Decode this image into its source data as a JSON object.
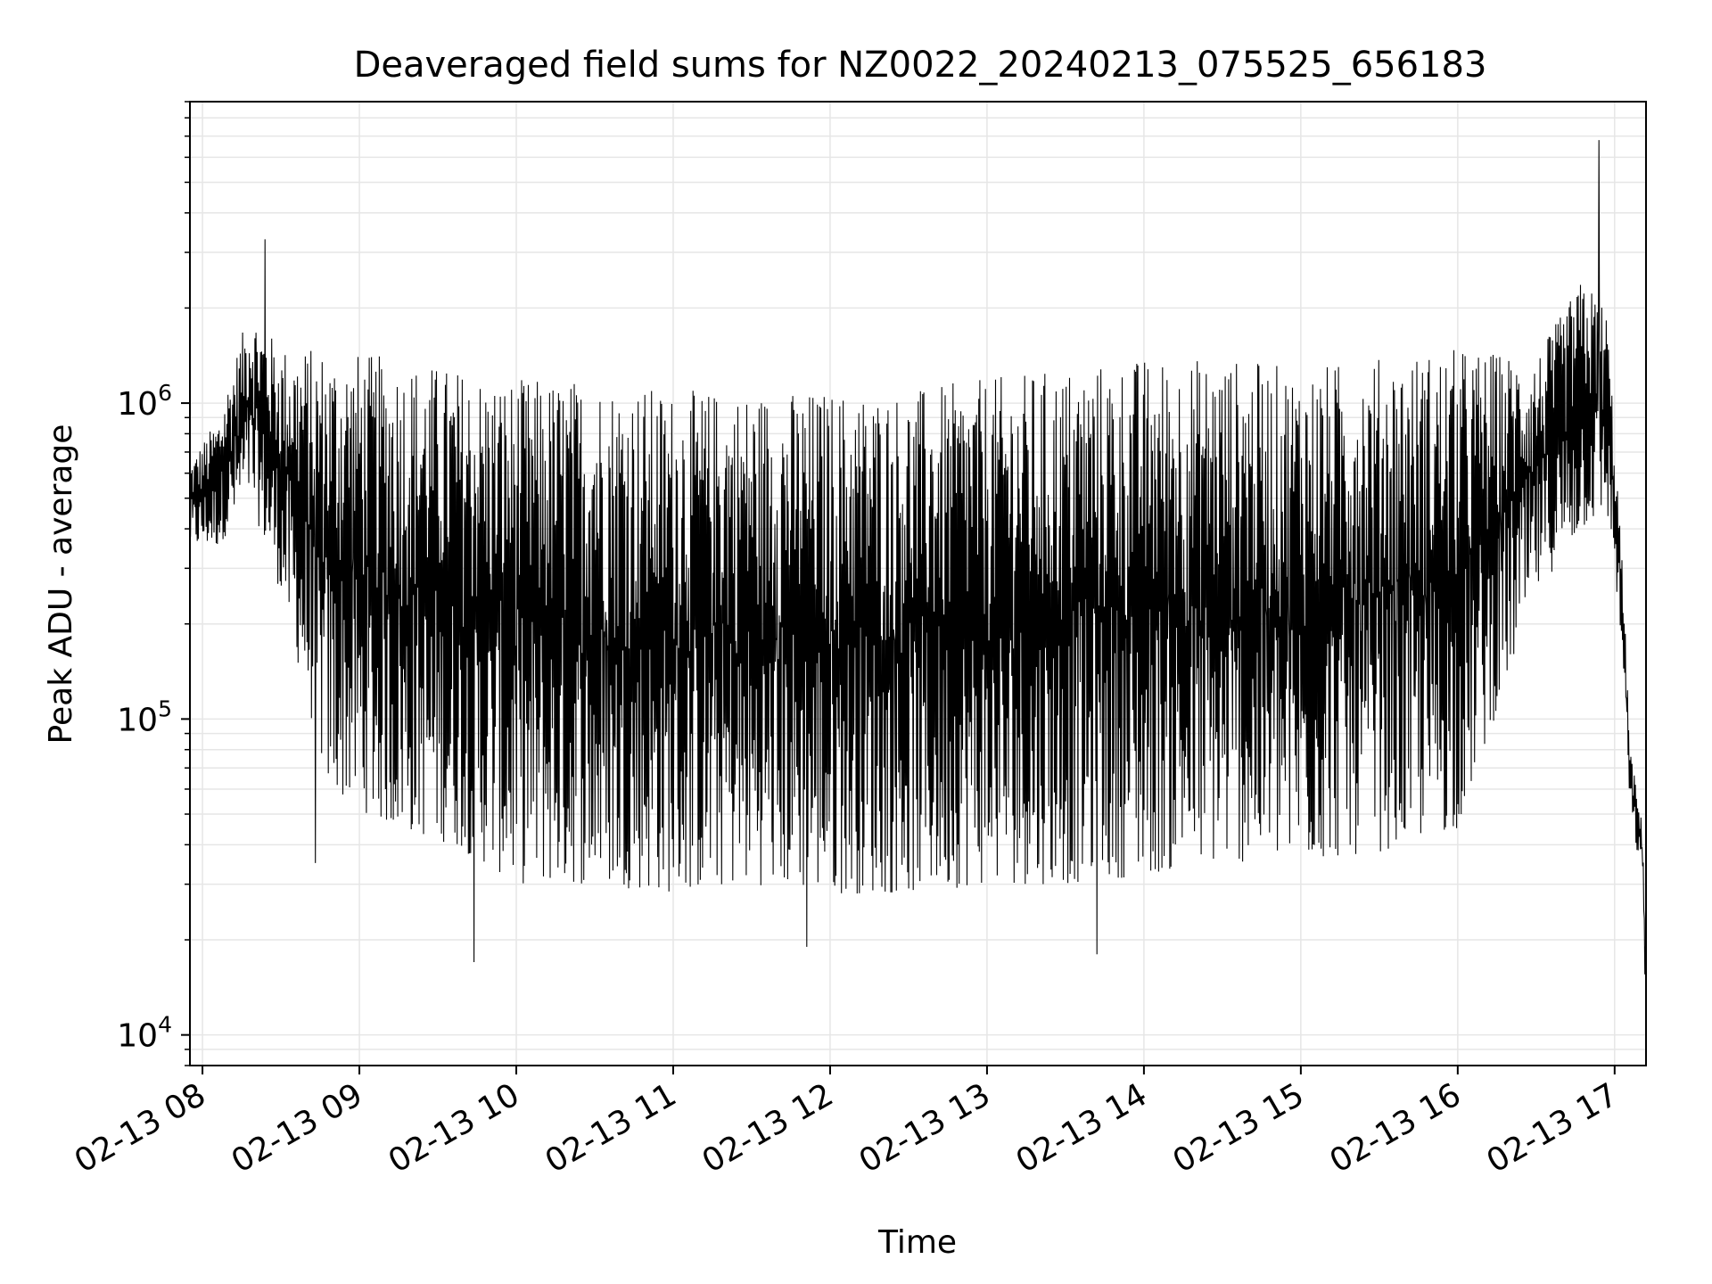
{
  "chart_data": {
    "type": "line",
    "title": "Deaveraged field sums for NZ0022_20240213_075525_656183",
    "xlabel": "Time",
    "ylabel": "Peak ADU - average",
    "yscale": "log",
    "ylim": [
      8000,
      9000000
    ],
    "xlim_hours": [
      7.92,
      17.2
    ],
    "grid": true,
    "line_color": "#000000",
    "grid_color": "#e6e6e6",
    "x_ticks": [
      {
        "label": "02-13 08",
        "hour": 8
      },
      {
        "label": "02-13 09",
        "hour": 9
      },
      {
        "label": "02-13 10",
        "hour": 10
      },
      {
        "label": "02-13 11",
        "hour": 11
      },
      {
        "label": "02-13 12",
        "hour": 12
      },
      {
        "label": "02-13 13",
        "hour": 13
      },
      {
        "label": "02-13 14",
        "hour": 14
      },
      {
        "label": "02-13 15",
        "hour": 15
      },
      {
        "label": "02-13 16",
        "hour": 16
      },
      {
        "label": "02-13 17",
        "hour": 17
      }
    ],
    "y_ticks": [
      {
        "base": "10",
        "exp": "4",
        "value": 10000
      },
      {
        "base": "10",
        "exp": "5",
        "value": 100000
      },
      {
        "base": "10",
        "exp": "6",
        "value": 1000000
      }
    ],
    "series": [
      {
        "envelope": [
          {
            "hour": 7.92,
            "low": 350000,
            "high": 650000
          },
          {
            "hour": 8.1,
            "low": 350000,
            "high": 900000
          },
          {
            "hour": 8.3,
            "low": 500000,
            "high": 2000000
          },
          {
            "hour": 8.5,
            "low": 250000,
            "high": 1500000
          },
          {
            "hour": 8.8,
            "low": 60000,
            "high": 1500000
          },
          {
            "hour": 9.2,
            "low": 45000,
            "high": 1400000
          },
          {
            "hour": 9.6,
            "low": 40000,
            "high": 1300000
          },
          {
            "hour": 10.0,
            "low": 30000,
            "high": 1200000
          },
          {
            "hour": 10.5,
            "low": 30000,
            "high": 1200000
          },
          {
            "hour": 11.0,
            "low": 28000,
            "high": 1100000
          },
          {
            "hour": 11.5,
            "low": 30000,
            "high": 1100000
          },
          {
            "hour": 12.0,
            "low": 28000,
            "high": 1100000
          },
          {
            "hour": 12.5,
            "low": 28000,
            "high": 1100000
          },
          {
            "hour": 13.0,
            "low": 30000,
            "high": 1200000
          },
          {
            "hour": 13.5,
            "low": 30000,
            "high": 1300000
          },
          {
            "hour": 14.0,
            "low": 32000,
            "high": 1400000
          },
          {
            "hour": 14.5,
            "low": 35000,
            "high": 1400000
          },
          {
            "hour": 15.0,
            "low": 35000,
            "high": 1300000
          },
          {
            "hour": 15.5,
            "low": 38000,
            "high": 1400000
          },
          {
            "hour": 16.0,
            "low": 45000,
            "high": 1500000
          },
          {
            "hour": 16.5,
            "low": 250000,
            "high": 1400000
          },
          {
            "hour": 16.8,
            "low": 400000,
            "high": 2500000
          },
          {
            "hour": 16.95,
            "low": 450000,
            "high": 2000000
          },
          {
            "hour": 17.0,
            "low": 300000,
            "high": 800000
          },
          {
            "hour": 17.05,
            "low": 150000,
            "high": 300000
          },
          {
            "hour": 17.1,
            "low": 50000,
            "high": 80000
          },
          {
            "hour": 17.18,
            "low": 30000,
            "high": 45000
          },
          {
            "hour": 17.2,
            "low": 10500,
            "high": 17000
          }
        ],
        "spikes": [
          {
            "hour": 8.4,
            "value": 3300000
          },
          {
            "hour": 8.72,
            "value": 35000
          },
          {
            "hour": 9.73,
            "value": 17000
          },
          {
            "hour": 11.85,
            "value": 19000
          },
          {
            "hour": 13.7,
            "value": 18000
          },
          {
            "hour": 16.9,
            "value": 6800000
          }
        ]
      }
    ]
  }
}
